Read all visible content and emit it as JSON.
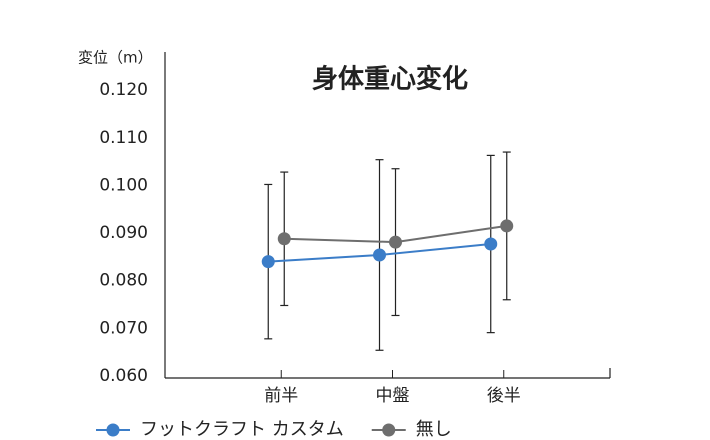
{
  "chart_data": {
    "type": "line",
    "title": "身体重心変化",
    "y_label": "変位（m）",
    "categories": [
      "前半",
      "中盤",
      "後半"
    ],
    "series": [
      {
        "name": "フットクラフト カスタム",
        "color": "#3b7dc8",
        "values": [
          0.084,
          0.0854,
          0.0877
        ],
        "errors": [
          0.0162,
          0.02,
          0.0186
        ]
      },
      {
        "name": "無し",
        "color": "#6e6e6e",
        "values": [
          0.0888,
          0.0881,
          0.0915
        ],
        "errors": [
          0.014,
          0.0154,
          0.0155
        ]
      }
    ],
    "ylim": [
      0.06,
      0.128
    ],
    "yticks": [
      {
        "value": 0.06,
        "label": "0.060"
      },
      {
        "value": 0.07,
        "label": "0.070"
      },
      {
        "value": 0.08,
        "label": "0.080"
      },
      {
        "value": 0.09,
        "label": "0.090"
      },
      {
        "value": 0.1,
        "label": "0.100"
      },
      {
        "value": 0.11,
        "label": "0.110"
      },
      {
        "value": 0.12,
        "label": "0.120"
      }
    ],
    "grid": false
  }
}
